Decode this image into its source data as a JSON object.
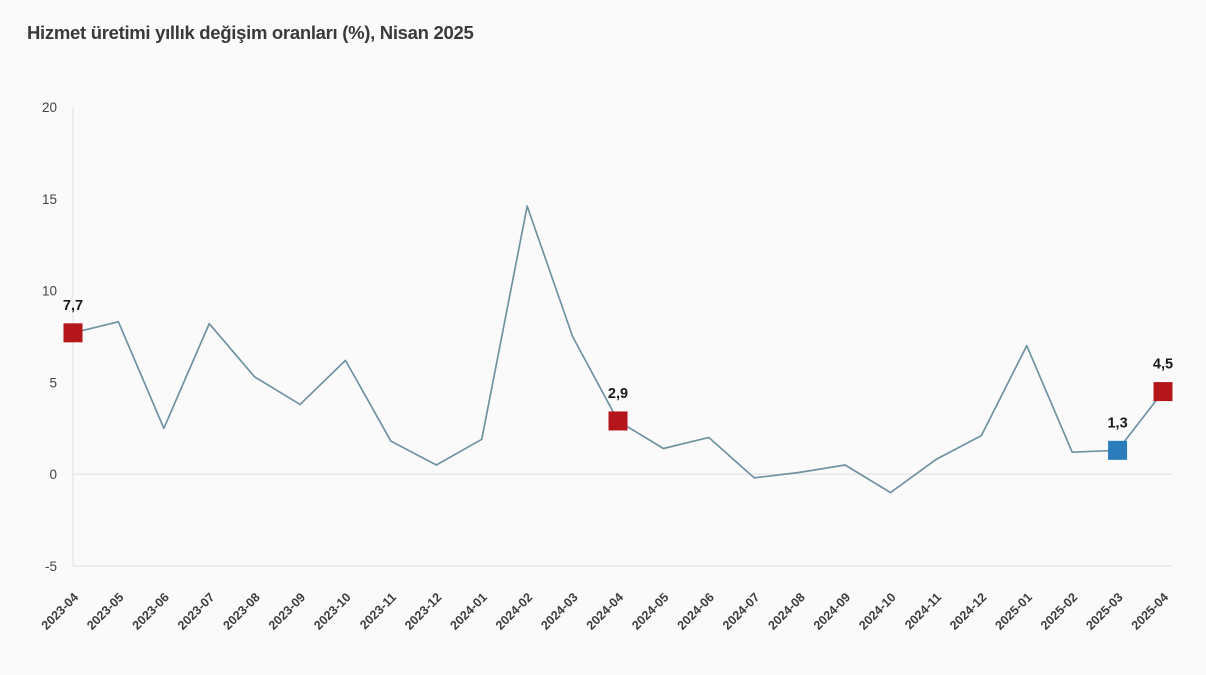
{
  "title": "Hizmet üretimi yıllık değişim oranları (%), Nisan 2025",
  "colors": {
    "line": "#6f93a1",
    "marker_red": "#b5161c",
    "marker_blue": "#2a7cbb",
    "grid": "#e9e7e7",
    "axis_text": "#454545",
    "label_text": "#1a1a1a",
    "title_text": "#3a3a3a"
  },
  "chart_data": {
    "type": "line",
    "title": "Hizmet üretimi yıllık değişim oranları (%), Nisan 2025",
    "x": [
      "2023-04",
      "2023-05",
      "2023-06",
      "2023-07",
      "2023-08",
      "2023-09",
      "2023-10",
      "2023-11",
      "2023-12",
      "2024-01",
      "2024-02",
      "2024-03",
      "2024-04",
      "2024-05",
      "2024-06",
      "2024-07",
      "2024-08",
      "2024-09",
      "2024-10",
      "2024-11",
      "2024-12",
      "2025-01",
      "2025-02",
      "2025-03",
      "2025-04"
    ],
    "values": [
      7.7,
      8.3,
      2.5,
      8.2,
      5.3,
      3.8,
      6.2,
      1.8,
      0.5,
      1.9,
      14.6,
      7.5,
      2.9,
      1.4,
      2.0,
      -0.2,
      0.1,
      0.5,
      -1.0,
      0.8,
      2.1,
      7.0,
      1.2,
      1.3,
      4.5
    ],
    "xlabel": "",
    "ylabel": "",
    "ylim": [
      -5,
      20
    ],
    "yticks": [
      20,
      15,
      10,
      5,
      0,
      -5
    ],
    "ytick_labels": [
      "20",
      "15",
      "10",
      "5",
      "0",
      "-5"
    ],
    "grid": "zero and bottom baseline only, light gray; vertical axis line at left",
    "legend_position": "none",
    "annotations": [
      {
        "x": "2023-04",
        "label": "7,7",
        "value": 7.7,
        "marker": "square",
        "color": "#b5161c"
      },
      {
        "x": "2024-04",
        "label": "2,9",
        "value": 2.9,
        "marker": "square",
        "color": "#b5161c"
      },
      {
        "x": "2025-03",
        "label": "1,3",
        "value": 1.3,
        "marker": "square",
        "color": "#2a7cbb"
      },
      {
        "x": "2025-04",
        "label": "4,5",
        "value": 4.5,
        "marker": "square",
        "color": "#b5161c"
      }
    ]
  }
}
